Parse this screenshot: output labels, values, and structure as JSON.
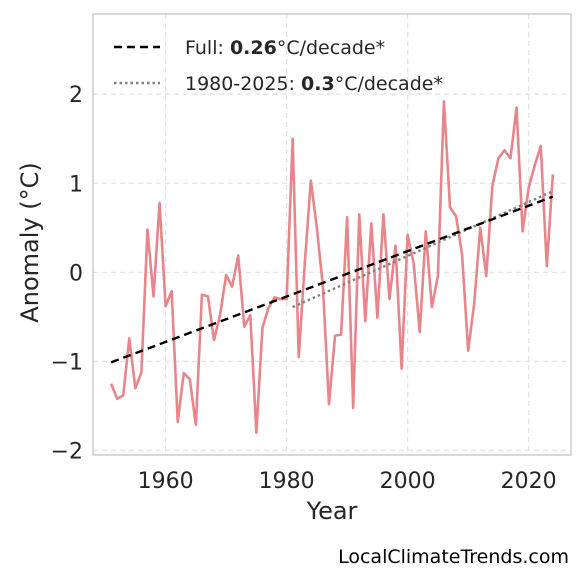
{
  "chart_data": {
    "type": "line",
    "xlabel": "Year",
    "ylabel": "Anomaly (°C)",
    "xlim": [
      1948,
      2027
    ],
    "ylim": [
      -2.05,
      2.9
    ],
    "x_ticks": [
      1960,
      1980,
      2000,
      2020
    ],
    "y_ticks": [
      -2,
      -1,
      0,
      1,
      2
    ],
    "y_tick_labels": [
      "−2",
      "−1",
      "0",
      "1",
      "2"
    ],
    "grid": true,
    "legend_position": "top-left",
    "series": [
      {
        "role": "anomaly",
        "color": "#e8858a",
        "x": [
          1951,
          1952,
          1953,
          1954,
          1955,
          1956,
          1957,
          1958,
          1959,
          1960,
          1961,
          1962,
          1963,
          1964,
          1965,
          1966,
          1967,
          1968,
          1969,
          1970,
          1971,
          1972,
          1973,
          1974,
          1975,
          1976,
          1977,
          1978,
          1979,
          1980,
          1981,
          1982,
          1983,
          1984,
          1985,
          1986,
          1987,
          1988,
          1989,
          1990,
          1991,
          1992,
          1993,
          1994,
          1995,
          1996,
          1997,
          1998,
          1999,
          2000,
          2001,
          2002,
          2003,
          2004,
          2005,
          2006,
          2007,
          2008,
          2009,
          2010,
          2011,
          2012,
          2013,
          2014,
          2015,
          2016,
          2017,
          2018,
          2019,
          2020,
          2021,
          2022,
          2023,
          2024
        ],
        "values": [
          -1.25,
          -1.42,
          -1.38,
          -0.74,
          -1.3,
          -1.12,
          0.48,
          -0.27,
          0.78,
          -0.38,
          -0.21,
          -1.68,
          -1.13,
          -1.2,
          -1.71,
          -0.25,
          -0.27,
          -0.76,
          -0.48,
          -0.03,
          -0.16,
          0.19,
          -0.61,
          -0.48,
          -1.8,
          -0.62,
          -0.4,
          -0.28,
          -0.3,
          -0.3,
          1.5,
          -0.95,
          0.1,
          1.03,
          0.5,
          -0.16,
          -1.48,
          -0.71,
          -0.7,
          0.62,
          -1.52,
          0.65,
          -0.55,
          0.55,
          -0.51,
          0.65,
          -0.3,
          0.3,
          -1.08,
          0.42,
          0.1,
          -0.67,
          0.46,
          -0.39,
          -0.04,
          1.92,
          0.73,
          0.63,
          0.2,
          -0.88,
          -0.35,
          0.5,
          -0.04,
          0.97,
          1.28,
          1.37,
          1.28,
          1.85,
          0.46,
          0.95,
          1.2,
          1.42,
          0.07,
          1.1
        ]
      },
      {
        "role": "full-trend",
        "color": "#000000",
        "x": [
          1951,
          2024
        ],
        "values": [
          -1.01,
          0.85
        ]
      },
      {
        "role": "recent-trend",
        "color": "#808080",
        "x": [
          1981,
          2024
        ],
        "values": [
          -0.39,
          0.91
        ]
      }
    ],
    "legend": [
      {
        "prefix": "Full: ",
        "value": "0.26",
        "suffix": "°C/decade*",
        "style": "dashed",
        "color": "#000000"
      },
      {
        "prefix": "1980-2025: ",
        "value": "0.3",
        "suffix": "°C/decade*",
        "style": "dotted",
        "color": "#808080"
      }
    ]
  },
  "credit": "LocalClimateTrends.com"
}
